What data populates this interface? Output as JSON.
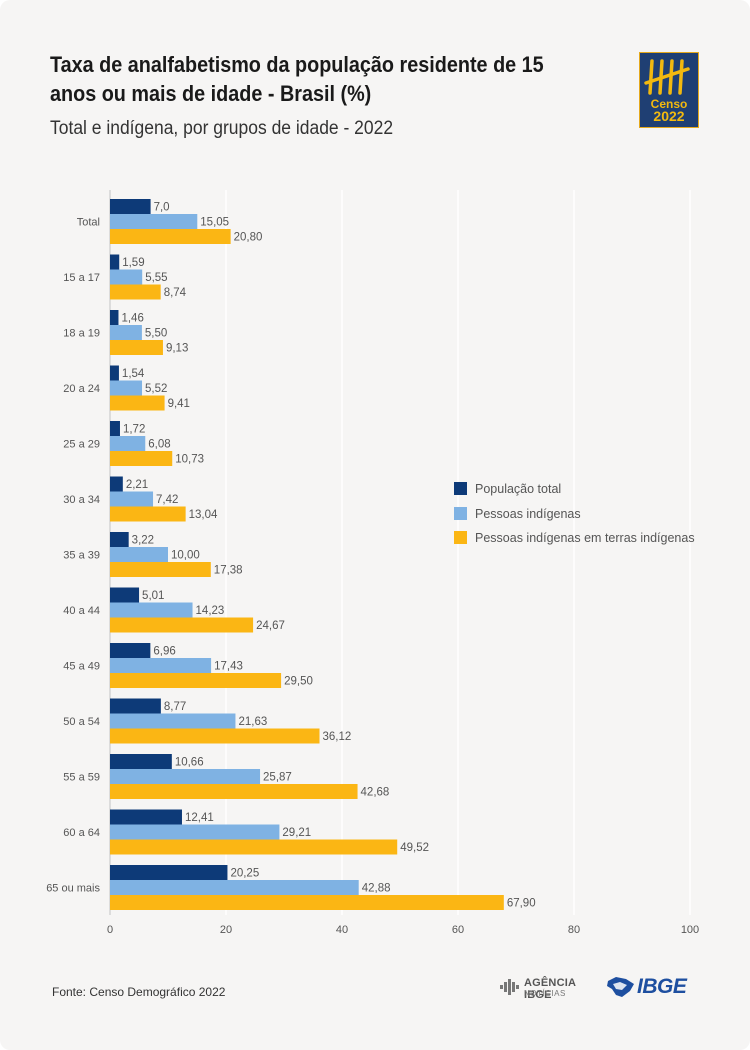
{
  "header": {
    "title": "Taxa de analfabetismo da população residente de 15 anos ou mais de idade - Brasil (%)",
    "subtitle": "Total e indígena, por grupos de idade - 2022"
  },
  "logo": {
    "line1": "Censo",
    "line2": "2022"
  },
  "footer": {
    "source": "Fonte: Censo Demográfico 2022",
    "agencia_line1": "AGÊNCIA IBGE",
    "agencia_line2": "NOTÍCIAS",
    "ibge": "IBGE"
  },
  "colors": {
    "background": "#f6f5f4",
    "grid": "#ffffff",
    "series1": "#0d3a78",
    "series2": "#7fb2e3",
    "series3": "#fbb614",
    "text": "#555555"
  },
  "chart_data": {
    "type": "bar",
    "orientation": "horizontal",
    "categories": [
      "Total",
      "15 a 17",
      "18 a 19",
      "20 a 24",
      "25 a 29",
      "30 a 34",
      "35 a 39",
      "40 a 44",
      "45 a 49",
      "50 a 54",
      "55 a 59",
      "60 a 64",
      "65 ou mais"
    ],
    "series": [
      {
        "name": "População total",
        "values": [
          7.0,
          1.59,
          1.46,
          1.54,
          1.72,
          2.21,
          3.22,
          5.01,
          6.96,
          8.77,
          10.66,
          12.41,
          20.25
        ],
        "labels": [
          "7,0",
          "1,59",
          "1,46",
          "1,54",
          "1,72",
          "2,21",
          "3,22",
          "5,01",
          "6,96",
          "8,77",
          "10,66",
          "12,41",
          "20,25"
        ]
      },
      {
        "name": "Pessoas indígenas",
        "values": [
          15.05,
          5.55,
          5.5,
          5.52,
          6.08,
          7.42,
          10.0,
          14.23,
          17.43,
          21.63,
          25.87,
          29.21,
          42.88
        ],
        "labels": [
          "15,05",
          "5,55",
          "5,50",
          "5,52",
          "6,08",
          "7,42",
          "10,00",
          "14,23",
          "17,43",
          "21,63",
          "25,87",
          "29,21",
          "42,88"
        ]
      },
      {
        "name": "Pessoas indígenas em terras indígenas",
        "values": [
          20.8,
          8.74,
          9.13,
          9.41,
          10.73,
          13.04,
          17.38,
          24.67,
          29.5,
          36.12,
          42.68,
          49.52,
          67.9
        ],
        "labels": [
          "20,80",
          "8,74",
          "9,13",
          "9,41",
          "10,73",
          "13,04",
          "17,38",
          "24,67",
          "29,50",
          "36,12",
          "42,68",
          "49,52",
          "67,90"
        ]
      }
    ],
    "xlim": [
      0,
      100
    ],
    "xticks": [
      "0",
      "20",
      "40",
      "60",
      "80",
      "100"
    ],
    "grid": true,
    "legend_position": "right"
  }
}
